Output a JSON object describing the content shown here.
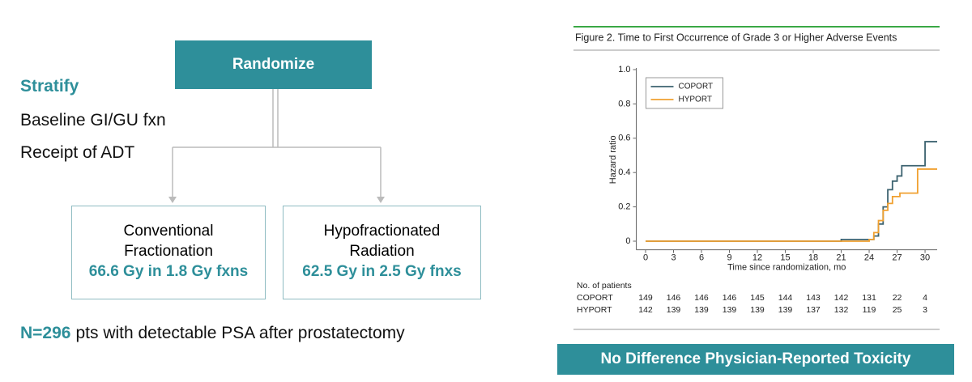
{
  "diagram": {
    "randomize": "Randomize",
    "stratify": "Stratify",
    "factors": [
      "Baseline GI/GU fxn",
      "Receipt of ADT"
    ],
    "arms": [
      {
        "lines": [
          "Conventional",
          "Fractionation"
        ],
        "dose": "66.6 Gy in 1.8 Gy fxns"
      },
      {
        "lines": [
          "Hypofractionated",
          "Radiation"
        ],
        "dose": "62.5 Gy in 2.5 Gy fnxs"
      }
    ],
    "n": "N=296",
    "n_text": "pts with detectable PSA after prostatectomy"
  },
  "banner": "No Difference Physician-Reported Toxicity",
  "chart_data": {
    "type": "line",
    "step": true,
    "title": "Figure 2. Time to First Occurrence of Grade 3 or Higher Adverse Events",
    "x_label": "Time since randomization, mo",
    "y_label": "Hazard ratio",
    "xlim": [
      -1,
      31.3
    ],
    "ylim": [
      -0.05,
      1.0
    ],
    "xticks": [
      0,
      3,
      6,
      9,
      12,
      15,
      18,
      21,
      24,
      27,
      30
    ],
    "yticks": [
      0,
      0.2,
      0.4,
      0.6,
      0.8,
      {
        "value": 1.0,
        "label": "1.0"
      }
    ],
    "legend": "top-left",
    "series": [
      {
        "name": "COPORT",
        "color": "#3d6370",
        "x": [
          0,
          21,
          24,
          24.5,
          25,
          25.5,
          26,
          26.5,
          27,
          27.5,
          30,
          31.3
        ],
        "values": [
          0,
          0.01,
          0.01,
          0.03,
          0.1,
          0.2,
          0.3,
          0.35,
          0.38,
          0.44,
          0.58,
          0.58
        ]
      },
      {
        "name": "HYPORT",
        "color": "#f0a030",
        "x": [
          0,
          24,
          24.5,
          25,
          25.5,
          26,
          26.5,
          27.3,
          29.2,
          31.3
        ],
        "values": [
          0,
          0.01,
          0.05,
          0.12,
          0.18,
          0.22,
          0.26,
          0.28,
          0.42,
          0.42
        ]
      }
    ],
    "risk_table": {
      "title": "No. of patients",
      "rows": [
        {
          "name": "COPORT",
          "values": [
            149,
            146,
            146,
            146,
            145,
            144,
            143,
            142,
            131,
            22,
            4
          ]
        },
        {
          "name": "HYPORT",
          "values": [
            142,
            139,
            139,
            139,
            139,
            139,
            137,
            132,
            119,
            25,
            3
          ]
        }
      ]
    }
  }
}
